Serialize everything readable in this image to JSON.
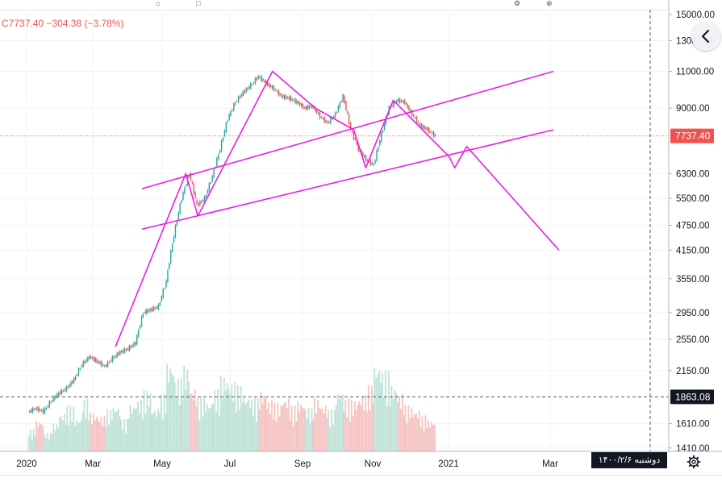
{
  "toolbar": {
    "btn_a": "⌂",
    "btn_b": "□",
    "btn_c": "⚙",
    "btn_d": "⊕"
  },
  "legend": {
    "last": "7737.40",
    "change": "−304.38",
    "change_pct": "(−3.78%)"
  },
  "nav": {
    "icon": "chevron-left-icon"
  },
  "date_label": "دوشنبه ۱۴۰۰/۲/۶",
  "settings": {
    "icon": "gear-icon"
  },
  "colors": {
    "up": "#26a69a",
    "down": "#ef5350",
    "vol_up": "#bfe3d8",
    "vol_down": "#f5c4c3",
    "drawing": "#e91ee3",
    "grid": "#f0f3fa",
    "axis_text": "#131722"
  },
  "chart_data": {
    "type": "candlestick",
    "y_scale": "log",
    "ylim": [
      1330,
      15800
    ],
    "y_ticks": [
      "15000.00",
      "13000.00",
      "11000.00",
      "9000.00",
      "6300.00",
      "5500.00",
      "4750.00",
      "4150.00",
      "3550.00",
      "2950.00",
      "2550.00",
      "2150.00",
      "1610.00",
      "1410.00"
    ],
    "x_ticks": [
      "2020",
      "Mar",
      "May",
      "Jul",
      "Sep",
      "Nov",
      "2021",
      "Mar"
    ],
    "price_badges": [
      {
        "label": "7737.40",
        "value": 7737.4,
        "color": "#ef5350"
      },
      {
        "label": "1863.08",
        "value": 1863.08,
        "color": "#131722"
      }
    ],
    "close_series": [
      [
        "2020-01-06",
        1750
      ],
      [
        "2020-01-13",
        1720
      ],
      [
        "2020-01-20",
        1820
      ],
      [
        "2020-01-27",
        1900
      ],
      [
        "2020-02-03",
        1950
      ],
      [
        "2020-02-10",
        2050
      ],
      [
        "2020-02-17",
        2220
      ],
      [
        "2020-02-24",
        2320
      ],
      [
        "2020-03-02",
        2260
      ],
      [
        "2020-03-09",
        2200
      ],
      [
        "2020-03-16",
        2300
      ],
      [
        "2020-03-23",
        2380
      ],
      [
        "2020-03-30",
        2420
      ],
      [
        "2020-04-06",
        2500
      ],
      [
        "2020-04-13",
        2950
      ],
      [
        "2020-04-20",
        3000
      ],
      [
        "2020-04-27",
        3050
      ],
      [
        "2020-05-04",
        3500
      ],
      [
        "2020-05-11",
        4500
      ],
      [
        "2020-05-18",
        5500
      ],
      [
        "2020-05-25",
        6300
      ],
      [
        "2020-06-01",
        5300
      ],
      [
        "2020-06-08",
        5500
      ],
      [
        "2020-06-15",
        6200
      ],
      [
        "2020-06-22",
        7200
      ],
      [
        "2020-06-29",
        8500
      ],
      [
        "2020-07-06",
        9300
      ],
      [
        "2020-07-13",
        9800
      ],
      [
        "2020-07-20",
        10200
      ],
      [
        "2020-07-27",
        10700
      ],
      [
        "2020-08-03",
        10300
      ],
      [
        "2020-08-10",
        10000
      ],
      [
        "2020-08-17",
        9600
      ],
      [
        "2020-08-24",
        9500
      ],
      [
        "2020-08-31",
        9300
      ],
      [
        "2020-09-07",
        9000
      ],
      [
        "2020-09-14",
        9100
      ],
      [
        "2020-09-21",
        8600
      ],
      [
        "2020-09-28",
        8300
      ],
      [
        "2020-10-05",
        8700
      ],
      [
        "2020-10-12",
        9600
      ],
      [
        "2020-10-19",
        8000
      ],
      [
        "2020-10-26",
        7200
      ],
      [
        "2020-11-02",
        6800
      ],
      [
        "2020-11-09",
        6600
      ],
      [
        "2020-11-16",
        7800
      ],
      [
        "2020-11-23",
        9000
      ],
      [
        "2020-11-30",
        9400
      ],
      [
        "2020-12-07",
        9300
      ],
      [
        "2020-12-14",
        8700
      ],
      [
        "2020-12-21",
        8200
      ],
      [
        "2020-12-28",
        8000
      ],
      [
        "2021-01-04",
        7737.4
      ]
    ],
    "volume_series": [
      300,
      420,
      250,
      380,
      520,
      610,
      450,
      700,
      520,
      480,
      560,
      620,
      430,
      640,
      700,
      820,
      590,
      760,
      1200,
      980,
      1150,
      860,
      720,
      680,
      830,
      1020,
      940,
      880,
      760,
      710,
      820,
      690,
      650,
      730,
      610,
      680,
      590,
      720,
      640,
      560,
      820,
      700,
      690,
      760,
      880,
      1180,
      1080,
      900,
      780,
      620,
      560,
      480,
      420
    ],
    "drawings": [
      {
        "kind": "zigzag-projection",
        "points": [
          [
            "2020-03-22",
            2450
          ],
          [
            "2020-05-25",
            6300
          ],
          [
            "2020-06-05",
            5000
          ],
          [
            "2020-08-12",
            11000
          ],
          [
            "2020-09-20",
            9000
          ],
          [
            "2020-10-25",
            8000
          ],
          [
            "2020-11-05",
            6500
          ],
          [
            "2020-11-30",
            9400
          ],
          [
            "2021-01-20",
            6900
          ],
          [
            "2021-01-25",
            6500
          ],
          [
            "2021-02-05",
            7300
          ],
          [
            "2021-04-30",
            4150
          ]
        ]
      },
      {
        "kind": "channel-upper",
        "points": [
          [
            "2020-04-15",
            5800
          ],
          [
            "2021-04-25",
            11000
          ]
        ]
      },
      {
        "kind": "channel-lower",
        "points": [
          [
            "2020-04-15",
            4650
          ],
          [
            "2021-04-25",
            8000
          ]
        ]
      }
    ],
    "annotations": [
      "dashed-vertical-line",
      "dashed-horizontal-line-1863.08",
      "dotted-horizontal-line-7737.40"
    ]
  }
}
